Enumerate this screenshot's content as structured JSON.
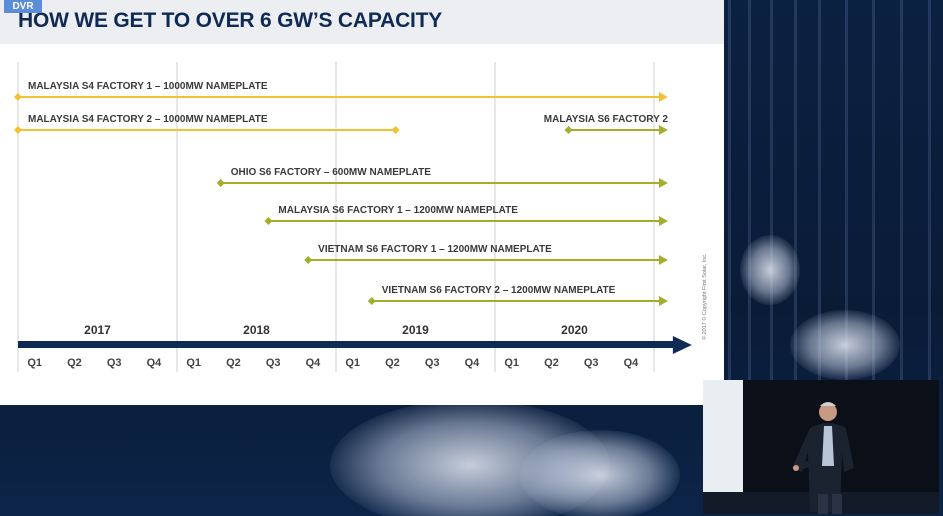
{
  "badge": {
    "label": "DVR"
  },
  "slide": {
    "title": "HOW WE GET TO OVER 6 GW’S CAPACITY",
    "copyright": "© 2017 © Copyright First Solar, Inc."
  },
  "timeline": {
    "years": [
      "2017",
      "2018",
      "2019",
      "2020"
    ],
    "quarters": [
      "Q1",
      "Q2",
      "Q3",
      "Q4",
      "Q1",
      "Q2",
      "Q3",
      "Q4",
      "Q1",
      "Q2",
      "Q3",
      "Q4",
      "Q1",
      "Q2",
      "Q3",
      "Q4"
    ],
    "colors": {
      "s4": "#f1c232",
      "s6": "#a5ae2c",
      "axis": "#0e2a55"
    },
    "factories": [
      {
        "label": "MALAYSIA S4 FACTORY 1 – 1000MW NAMEPLATE",
        "type": "s4",
        "start": 0.0,
        "end": 16.35,
        "open_end": true
      },
      {
        "label": "MALAYSIA S4 FACTORY 2 – 1000MW NAMEPLATE",
        "type": "s4",
        "start": 0.0,
        "end": 9.5,
        "open_end": false
      },
      {
        "label": "MALAYSIA S6 FACTORY 2",
        "type": "s6",
        "start": 13.85,
        "end": 16.35,
        "open_end": true
      },
      {
        "label": "OHIO S6 FACTORY – 600MW NAMEPLATE",
        "type": "s6",
        "start": 5.1,
        "end": 16.35,
        "open_end": true
      },
      {
        "label": "MALAYSIA S6 FACTORY 1 – 1200MW NAMEPLATE",
        "type": "s6",
        "start": 6.3,
        "end": 16.35,
        "open_end": true
      },
      {
        "label": "VIETNAM S6 FACTORY 1 – 1200MW NAMEPLATE",
        "type": "s6",
        "start": 7.3,
        "end": 16.35,
        "open_end": true
      },
      {
        "label": "VIETNAM S6 FACTORY 2 – 1200MW NAMEPLATE",
        "type": "s6",
        "start": 8.9,
        "end": 16.35,
        "open_end": true
      }
    ]
  }
}
